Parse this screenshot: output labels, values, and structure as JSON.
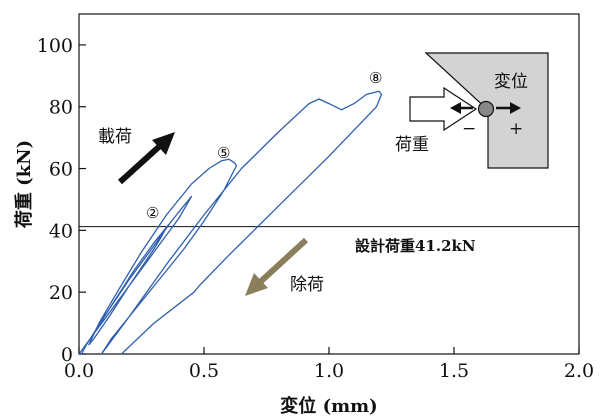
{
  "chart_data": {
    "type": "line",
    "xlabel": "変位 (mm)",
    "ylabel": "荷重 (kN)",
    "xlim": [
      0,
      2.0
    ],
    "ylim": [
      0,
      110
    ],
    "xticks": [
      0.0,
      0.5,
      1.0,
      1.5,
      2.0
    ],
    "xtick_labels": [
      "0.0",
      "0.5",
      "1.0",
      "1.5",
      "2.0"
    ],
    "yticks": [
      0,
      20,
      40,
      60,
      80,
      100
    ],
    "ytick_labels": [
      "0",
      "20",
      "40",
      "60",
      "80",
      "100"
    ],
    "grid": false,
    "series": [
      {
        "color": "#2f5fae",
        "x": [
          0,
          0.05,
          0.1,
          0.15,
          0.2,
          0.25,
          0.3,
          0.33,
          0.35,
          0.36,
          0.3,
          0.22,
          0.14,
          0.07,
          0.03,
          0.01,
          0.03,
          0.1,
          0.2,
          0.3,
          0.37,
          0.41,
          0.44,
          0.45,
          0.4,
          0.3,
          0.2,
          0.12,
          0.06,
          0.04,
          0.08,
          0.16,
          0.25,
          0.35,
          0.45,
          0.52,
          0.57,
          0.6,
          0.62,
          0.63,
          0.58,
          0.5,
          0.42,
          0.34,
          0.26,
          0.19,
          0.13,
          0.09,
          0.2,
          0.35,
          0.5,
          0.65,
          0.8,
          0.92,
          0.96,
          1.0,
          1.05,
          1.1,
          1.15,
          1.2,
          1.21,
          1.19,
          1.0,
          0.8,
          0.6,
          0.48,
          0.46,
          0.3,
          0.17
        ],
        "y": [
          0,
          5.5,
          11,
          16.5,
          22,
          28,
          34,
          38,
          41,
          42,
          36,
          27,
          17,
          8,
          3,
          0,
          3,
          12,
          24,
          35,
          43,
          47,
          50,
          51,
          44,
          33,
          22,
          12,
          5,
          3,
          10,
          21,
          33,
          45,
          55,
          60,
          62.5,
          63,
          62,
          61,
          53,
          43,
          34,
          26,
          18,
          11,
          5,
          0,
          12,
          29,
          45,
          60,
          72,
          81,
          82.5,
          81,
          79,
          81,
          84,
          85,
          84,
          80,
          64,
          48,
          32,
          22,
          20,
          10,
          0
        ]
      }
    ],
    "reference_line": {
      "y": 41.2,
      "label": "設計荷重41.2kN"
    },
    "annotations": {
      "loading": "載荷",
      "unloading": "除荷",
      "cycle_2": "②",
      "cycle_5": "⑤",
      "cycle_8": "⑧"
    },
    "inset": {
      "displacement_label": "変位",
      "load_label": "荷重",
      "minus": "−",
      "plus": "+"
    }
  }
}
